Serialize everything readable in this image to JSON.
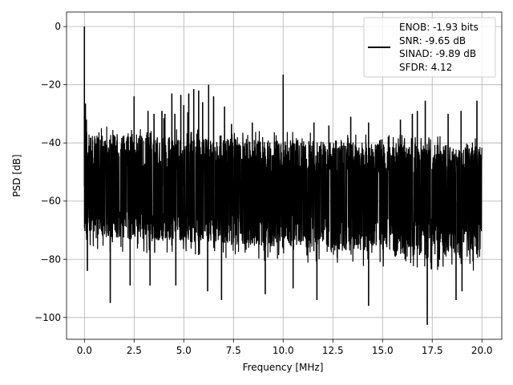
{
  "chart_data": {
    "type": "line",
    "title": "",
    "xlabel": "Frequency [MHz]",
    "ylabel": "PSD [dB]",
    "xlim": [
      -0.9,
      21.0
    ],
    "ylim": [
      -107.5,
      5.0
    ],
    "x_ticks": [
      0.0,
      2.5,
      5.0,
      7.5,
      10.0,
      12.5,
      15.0,
      17.5,
      20.0
    ],
    "x_tick_labels": [
      "0.0",
      "2.5",
      "5.0",
      "7.5",
      "10.0",
      "12.5",
      "15.0",
      "17.5",
      "20.0"
    ],
    "y_ticks": [
      0,
      -20,
      -40,
      -60,
      -80,
      -100
    ],
    "y_tick_labels": [
      "0",
      "−20",
      "−40",
      "−60",
      "−80",
      "−100"
    ],
    "grid": true,
    "legend_position": "top-right",
    "line_color": "#000000",
    "series": [
      {
        "x_range": [
          0.0,
          20.0
        ],
        "noise_band_top": [
          -37,
          -41
        ],
        "noise_band_bottom": [
          -72,
          -80
        ],
        "noise_floor_mean": -57,
        "spikes": [
          {
            "x": 0.0,
            "y": 0.0
          },
          {
            "x": 0.05,
            "y": -26.5
          },
          {
            "x": 0.1,
            "y": -32
          },
          {
            "x": 2.5,
            "y": -24
          },
          {
            "x": 3.2,
            "y": -29
          },
          {
            "x": 3.5,
            "y": -30
          },
          {
            "x": 3.9,
            "y": -29
          },
          {
            "x": 4.0,
            "y": -31.5
          },
          {
            "x": 4.05,
            "y": -30
          },
          {
            "x": 4.4,
            "y": -23
          },
          {
            "x": 4.55,
            "y": -30
          },
          {
            "x": 4.85,
            "y": -23.5
          },
          {
            "x": 5.0,
            "y": -27
          },
          {
            "x": 5.2,
            "y": -29.5
          },
          {
            "x": 5.25,
            "y": -23
          },
          {
            "x": 5.5,
            "y": -21.5
          },
          {
            "x": 5.75,
            "y": -22
          },
          {
            "x": 5.95,
            "y": -26
          },
          {
            "x": 6.25,
            "y": -20
          },
          {
            "x": 6.5,
            "y": -24
          },
          {
            "x": 7.05,
            "y": -27.5
          },
          {
            "x": 7.4,
            "y": -33.5
          },
          {
            "x": 8.45,
            "y": -33
          },
          {
            "x": 10.0,
            "y": -16.5
          },
          {
            "x": 11.55,
            "y": -33
          },
          {
            "x": 12.3,
            "y": -34
          },
          {
            "x": 13.4,
            "y": -31
          },
          {
            "x": 14.3,
            "y": -33
          },
          {
            "x": 15.9,
            "y": -32
          },
          {
            "x": 16.5,
            "y": -30
          },
          {
            "x": 16.75,
            "y": -29
          },
          {
            "x": 17.15,
            "y": -25.5
          },
          {
            "x": 18.3,
            "y": -30
          },
          {
            "x": 18.95,
            "y": -29
          },
          {
            "x": 19.75,
            "y": -25.5
          }
        ],
        "dips": [
          {
            "x": 0.15,
            "y": -84
          },
          {
            "x": 1.3,
            "y": -95
          },
          {
            "x": 2.3,
            "y": -89
          },
          {
            "x": 3.3,
            "y": -89
          },
          {
            "x": 4.6,
            "y": -89
          },
          {
            "x": 6.2,
            "y": -91
          },
          {
            "x": 6.9,
            "y": -94
          },
          {
            "x": 9.1,
            "y": -92
          },
          {
            "x": 10.5,
            "y": -90
          },
          {
            "x": 11.7,
            "y": -94
          },
          {
            "x": 14.3,
            "y": -96
          },
          {
            "x": 17.25,
            "y": -102.5
          },
          {
            "x": 18.7,
            "y": -94
          },
          {
            "x": 19.0,
            "y": -91
          }
        ]
      }
    ],
    "legend": {
      "entries": [
        "ENOB: -1.93 bits",
        "SNR: -9.65 dB",
        "SINAD: -9.89 dB",
        "SFDR: 4.12"
      ]
    }
  }
}
